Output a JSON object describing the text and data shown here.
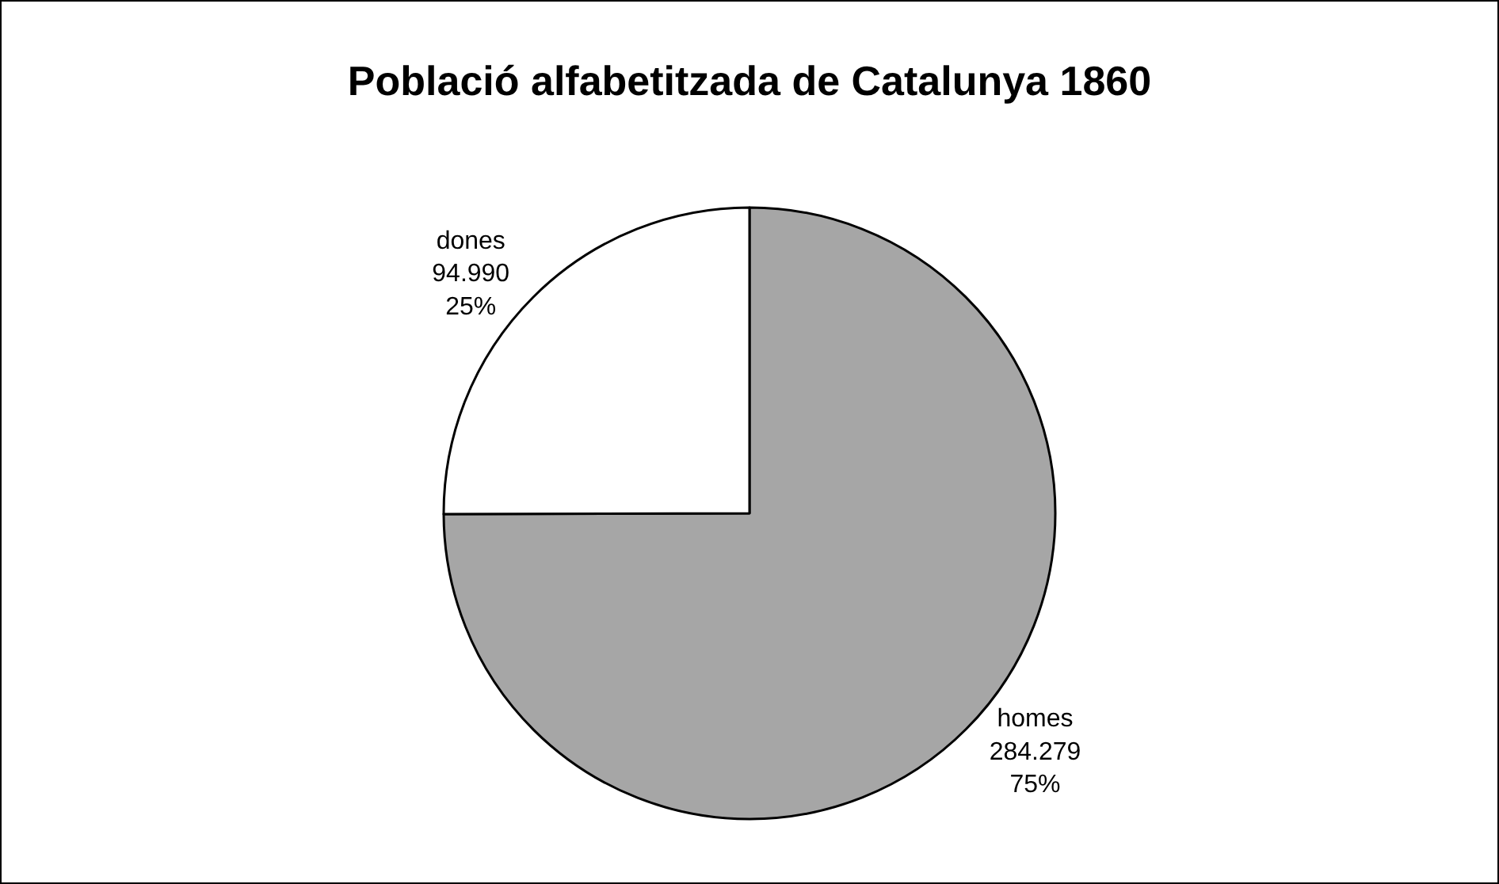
{
  "chart_data": {
    "type": "pie",
    "title": "Població alfabetitzada de Catalunya 1860",
    "categories": [
      "homes",
      "dones"
    ],
    "values": [
      284279,
      94990
    ],
    "value_labels": [
      "284.279\n75%",
      "94.990\n25%"
    ],
    "colors": [
      "#a6a6a6",
      "#ffffff"
    ],
    "legend": false
  }
}
